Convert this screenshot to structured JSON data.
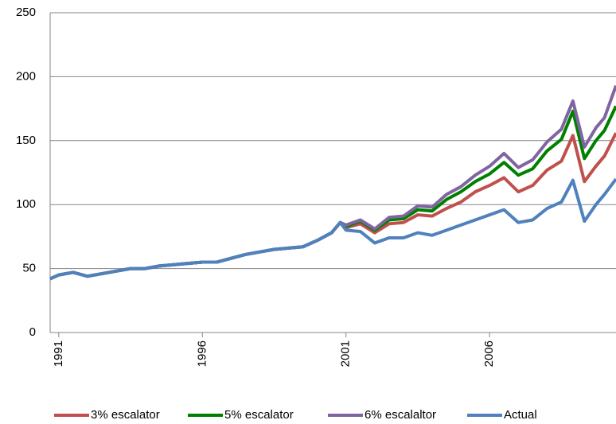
{
  "chart_data": {
    "type": "line",
    "x": [
      1990.7,
      1991,
      1991.5,
      1992,
      1992.5,
      1993,
      1993.5,
      1994,
      1994.5,
      1995,
      1995.5,
      1996,
      1996.5,
      1997,
      1997.5,
      1998,
      1998.5,
      1999,
      1999.5,
      2000,
      2000.5,
      2000.8,
      2001,
      2001.5,
      2002,
      2002.5,
      2003,
      2003.5,
      2004,
      2004.5,
      2005,
      2005.5,
      2006,
      2006.5,
      2007,
      2007.5,
      2008,
      2008.5,
      2008.9,
      2009.3,
      2009.7,
      2010,
      2010.4
    ],
    "series": [
      {
        "name": "3% escalator",
        "color": "#c0504d",
        "values": [
          42,
          45,
          47,
          44,
          46,
          48,
          50,
          50,
          52,
          53,
          54,
          55,
          55,
          58,
          61,
          63,
          65,
          66,
          67,
          72,
          78,
          86,
          82,
          85,
          78,
          85,
          86,
          92,
          91,
          97,
          102,
          110,
          115,
          121,
          110,
          115,
          127,
          134,
          154,
          118,
          130,
          138,
          156
        ]
      },
      {
        "name": "5% escalator",
        "color": "#008000",
        "values": [
          42,
          45,
          47,
          44,
          46,
          48,
          50,
          50,
          52,
          53,
          54,
          55,
          55,
          58,
          61,
          63,
          65,
          66,
          67,
          72,
          78,
          86,
          83,
          87,
          80,
          88,
          89,
          96,
          95,
          104,
          110,
          118,
          124,
          133,
          123,
          128,
          142,
          151,
          173,
          136,
          150,
          158,
          177
        ]
      },
      {
        "name": "6% escalaltor",
        "color": "#8064a2",
        "values": [
          42,
          45,
          47,
          44,
          46,
          48,
          50,
          50,
          52,
          53,
          54,
          55,
          55,
          58,
          61,
          63,
          65,
          66,
          67,
          72,
          78,
          86,
          84,
          88,
          81,
          90,
          91,
          99,
          98,
          108,
          114,
          123,
          130,
          140,
          129,
          135,
          149,
          159,
          181,
          145,
          160,
          168,
          193
        ]
      },
      {
        "name": "Actual",
        "color": "#4f81bd",
        "values": [
          42,
          45,
          47,
          44,
          46,
          48,
          50,
          50,
          52,
          53,
          54,
          55,
          55,
          58,
          61,
          63,
          65,
          66,
          67,
          72,
          78,
          86,
          80,
          79,
          70,
          74,
          74,
          78,
          76,
          80,
          84,
          88,
          92,
          96,
          86,
          88,
          97,
          102,
          119,
          87,
          100,
          108,
          120
        ]
      }
    ],
    "xlim": [
      1990.7,
      2010.4
    ],
    "xticks": [
      1991,
      1996,
      2001,
      2006
    ],
    "ylim": [
      0,
      250
    ],
    "yticks": [
      0,
      50,
      100,
      150,
      200,
      250
    ],
    "grid": true
  }
}
